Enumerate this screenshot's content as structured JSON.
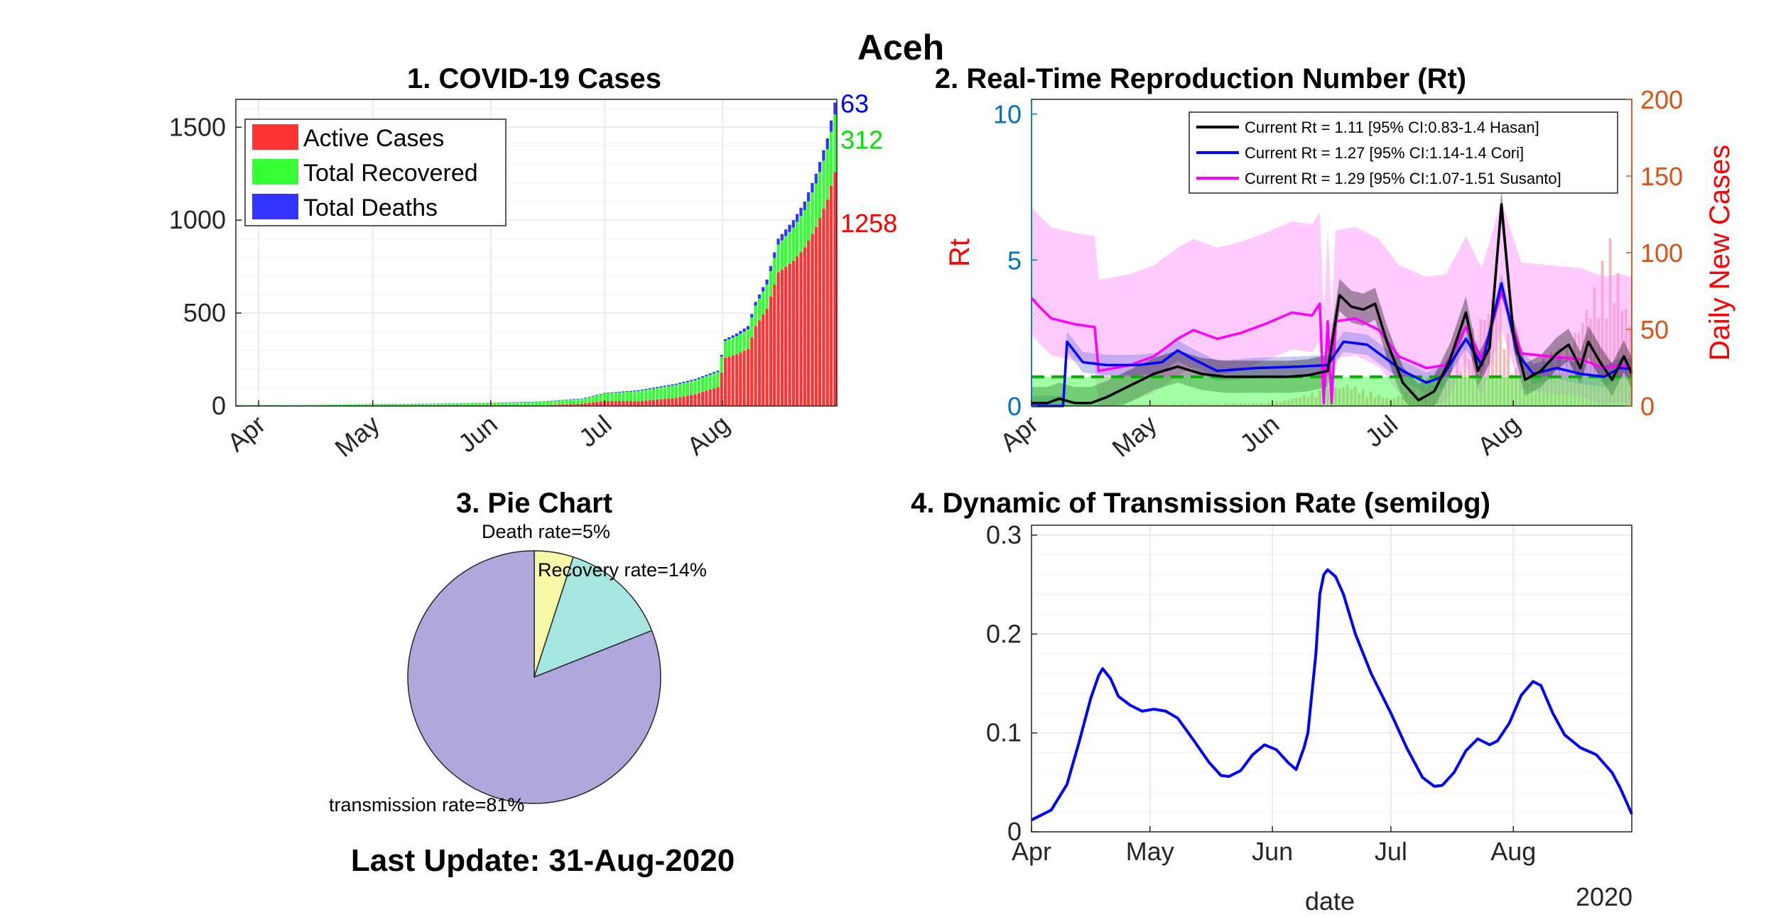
{
  "page_title": "Aceh",
  "last_update": "Last Update: 31-Aug-2020",
  "chart_data": [
    {
      "id": "cases",
      "type": "bar",
      "title": "1. COVID-19 Cases",
      "stacked": true,
      "x_range": [
        "2020-03-26",
        "2020-08-31"
      ],
      "month_ticks": [
        {
          "label": "Apr",
          "date": "2020-04-01"
        },
        {
          "label": "May",
          "date": "2020-05-01"
        },
        {
          "label": "Jun",
          "date": "2020-06-01"
        },
        {
          "label": "Jul",
          "date": "2020-07-01"
        },
        {
          "label": "Aug",
          "date": "2020-08-01"
        }
      ],
      "ylim": [
        0,
        1650
      ],
      "yticks": [
        0,
        500,
        1000,
        1500
      ],
      "ytick_labels": [
        "0",
        "500",
        "1000",
        "1500"
      ],
      "grid": true,
      "legend_position": "top-left",
      "series": [
        {
          "name": "Active Cases",
          "color": "#ff3333"
        },
        {
          "name": "Total Recovered",
          "color": "#33ff33"
        },
        {
          "name": "Total Deaths",
          "color": "#3333ff"
        }
      ],
      "total_keypoints": [
        [
          "2020-03-26",
          5
        ],
        [
          "2020-04-15",
          6
        ],
        [
          "2020-05-01",
          10
        ],
        [
          "2020-05-20",
          14
        ],
        [
          "2020-06-01",
          18
        ],
        [
          "2020-06-15",
          25
        ],
        [
          "2020-06-25",
          40
        ],
        [
          "2020-07-01",
          70
        ],
        [
          "2020-07-10",
          85
        ],
        [
          "2020-07-20",
          120
        ],
        [
          "2020-07-25",
          145
        ],
        [
          "2020-07-31",
          190
        ],
        [
          "2020-08-02",
          360
        ],
        [
          "2020-08-05",
          390
        ],
        [
          "2020-08-08",
          430
        ],
        [
          "2020-08-10",
          560
        ],
        [
          "2020-08-13",
          680
        ],
        [
          "2020-08-16",
          900
        ],
        [
          "2020-08-20",
          1000
        ],
        [
          "2020-08-23",
          1100
        ],
        [
          "2020-08-26",
          1250
        ],
        [
          "2020-08-29",
          1440
        ],
        [
          "2020-08-31",
          1633
        ]
      ],
      "recovered_keypoints": [
        [
          "2020-03-26",
          1
        ],
        [
          "2020-05-01",
          5
        ],
        [
          "2020-06-01",
          12
        ],
        [
          "2020-06-25",
          25
        ],
        [
          "2020-07-01",
          40
        ],
        [
          "2020-07-20",
          70
        ],
        [
          "2020-07-31",
          80
        ],
        [
          "2020-08-02",
          90
        ],
        [
          "2020-08-10",
          110
        ],
        [
          "2020-08-16",
          150
        ],
        [
          "2020-08-23",
          200
        ],
        [
          "2020-08-29",
          270
        ],
        [
          "2020-08-31",
          312
        ]
      ],
      "deaths_keypoints": [
        [
          "2020-03-26",
          0
        ],
        [
          "2020-06-01",
          1
        ],
        [
          "2020-07-01",
          3
        ],
        [
          "2020-07-31",
          8
        ],
        [
          "2020-08-10",
          20
        ],
        [
          "2020-08-20",
          40
        ],
        [
          "2020-08-31",
          63
        ]
      ],
      "end_labels": [
        {
          "text": "63",
          "color": "#0000ff"
        },
        {
          "text": "312",
          "color": "#00e600"
        },
        {
          "text": "1258",
          "color": "#ff0000"
        }
      ],
      "final_values": {
        "deaths": 63,
        "recovered": 312,
        "active": 1258
      }
    },
    {
      "id": "rt",
      "type": "line",
      "title": "2. Real-Time Reproduction Number (Rt)",
      "ylabel_left": "Rt",
      "ylabel_right": "Daily New Cases",
      "ylim_left": [
        0,
        10.5
      ],
      "yticks_left": [
        0,
        5,
        10
      ],
      "ytick_labels_left": [
        "0",
        "5",
        "10"
      ],
      "ylim_right": [
        0,
        200
      ],
      "yticks_right": [
        0,
        50,
        100,
        150,
        200
      ],
      "ytick_labels_right": [
        "0",
        "50",
        "100",
        "150",
        "200"
      ],
      "x_range": [
        "2020-04-01",
        "2020-08-31"
      ],
      "month_ticks": [
        {
          "label": "Apr",
          "date": "2020-04-01"
        },
        {
          "label": "May",
          "date": "2020-05-01"
        },
        {
          "label": "Jun",
          "date": "2020-06-01"
        },
        {
          "label": "Jul",
          "date": "2020-07-01"
        },
        {
          "label": "Aug",
          "date": "2020-08-01"
        }
      ],
      "legend_position": "top-right",
      "threshold": 1,
      "series": [
        {
          "name": "Current Rt = 1.11 [95% CI:0.83-1.4 Hasan]",
          "color": "#000000",
          "band_color": "#000000",
          "points": [
            [
              "2020-04-01",
              0.1
            ],
            [
              "2020-04-05",
              0.1
            ],
            [
              "2020-04-08",
              0.25
            ],
            [
              "2020-04-12",
              0.1
            ],
            [
              "2020-04-16",
              0.1
            ],
            [
              "2020-04-20",
              0.3
            ],
            [
              "2020-04-26",
              0.7
            ],
            [
              "2020-05-02",
              1.1
            ],
            [
              "2020-05-08",
              1.35
            ],
            [
              "2020-05-14",
              1.1
            ],
            [
              "2020-05-20",
              1.0
            ],
            [
              "2020-05-28",
              1.0
            ],
            [
              "2020-06-05",
              1.0
            ],
            [
              "2020-06-10",
              1.05
            ],
            [
              "2020-06-15",
              1.2
            ],
            [
              "2020-06-18",
              3.8
            ],
            [
              "2020-06-21",
              3.4
            ],
            [
              "2020-06-24",
              3.3
            ],
            [
              "2020-06-27",
              3.5
            ],
            [
              "2020-06-30",
              2.2
            ],
            [
              "2020-07-04",
              0.8
            ],
            [
              "2020-07-08",
              0.2
            ],
            [
              "2020-07-12",
              0.5
            ],
            [
              "2020-07-16",
              1.6
            ],
            [
              "2020-07-20",
              3.2
            ],
            [
              "2020-07-23",
              1.2
            ],
            [
              "2020-07-26",
              2.0
            ],
            [
              "2020-07-29",
              6.9
            ],
            [
              "2020-08-01",
              2.5
            ],
            [
              "2020-08-04",
              0.9
            ],
            [
              "2020-08-08",
              1.2
            ],
            [
              "2020-08-12",
              1.8
            ],
            [
              "2020-08-15",
              2.1
            ],
            [
              "2020-08-18",
              1.3
            ],
            [
              "2020-08-20",
              2.2
            ],
            [
              "2020-08-23",
              1.5
            ],
            [
              "2020-08-26",
              0.9
            ],
            [
              "2020-08-29",
              1.7
            ],
            [
              "2020-08-31",
              1.11
            ]
          ]
        },
        {
          "name": "Current Rt = 1.27 [95% CI:1.14-1.4 Cori]",
          "color": "#0000ff",
          "band_color": "#5b6bd9",
          "points": [
            [
              "2020-04-01",
              0.0
            ],
            [
              "2020-04-09",
              0.0
            ],
            [
              "2020-04-10",
              2.2
            ],
            [
              "2020-04-14",
              1.5
            ],
            [
              "2020-04-20",
              1.4
            ],
            [
              "2020-04-28",
              1.4
            ],
            [
              "2020-05-04",
              1.5
            ],
            [
              "2020-05-08",
              1.9
            ],
            [
              "2020-05-12",
              1.6
            ],
            [
              "2020-05-18",
              1.2
            ],
            [
              "2020-05-28",
              1.3
            ],
            [
              "2020-06-08",
              1.35
            ],
            [
              "2020-06-15",
              1.4
            ],
            [
              "2020-06-19",
              2.2
            ],
            [
              "2020-06-25",
              2.1
            ],
            [
              "2020-06-30",
              1.6
            ],
            [
              "2020-07-04",
              1.2
            ],
            [
              "2020-07-10",
              0.8
            ],
            [
              "2020-07-14",
              1.0
            ],
            [
              "2020-07-20",
              2.3
            ],
            [
              "2020-07-24",
              1.4
            ],
            [
              "2020-07-29",
              4.2
            ],
            [
              "2020-08-02",
              1.8
            ],
            [
              "2020-08-06",
              1.1
            ],
            [
              "2020-08-12",
              1.3
            ],
            [
              "2020-08-18",
              1.1
            ],
            [
              "2020-08-24",
              1.0
            ],
            [
              "2020-08-28",
              1.3
            ],
            [
              "2020-08-31",
              1.27
            ]
          ]
        },
        {
          "name": "Current Rt = 1.29 [95% CI:1.07-1.51 Susanto]",
          "color": "#ff00ff",
          "band_color": "#ff8cff",
          "points": [
            [
              "2020-04-01",
              3.7
            ],
            [
              "2020-04-03",
              3.4
            ],
            [
              "2020-04-06",
              3.0
            ],
            [
              "2020-04-12",
              2.8
            ],
            [
              "2020-04-17",
              2.7
            ],
            [
              "2020-04-18",
              1.2
            ],
            [
              "2020-04-26",
              1.4
            ],
            [
              "2020-05-02",
              1.7
            ],
            [
              "2020-05-08",
              2.3
            ],
            [
              "2020-05-12",
              2.6
            ],
            [
              "2020-05-18",
              2.3
            ],
            [
              "2020-05-24",
              2.5
            ],
            [
              "2020-05-30",
              2.8
            ],
            [
              "2020-06-06",
              3.2
            ],
            [
              "2020-06-11",
              3.1
            ],
            [
              "2020-06-13",
              3.5
            ],
            [
              "2020-06-14",
              0.1
            ],
            [
              "2020-06-15",
              2.9
            ],
            [
              "2020-06-16",
              0.1
            ],
            [
              "2020-06-17",
              2.9
            ],
            [
              "2020-06-22",
              3.0
            ],
            [
              "2020-06-28",
              2.6
            ],
            [
              "2020-07-03",
              1.7
            ],
            [
              "2020-07-10",
              1.3
            ],
            [
              "2020-07-15",
              1.4
            ],
            [
              "2020-07-20",
              2.7
            ],
            [
              "2020-07-24",
              1.6
            ],
            [
              "2020-07-29",
              3.9
            ],
            [
              "2020-08-03",
              1.8
            ],
            [
              "2020-08-10",
              1.7
            ],
            [
              "2020-08-18",
              1.6
            ],
            [
              "2020-08-24",
              1.3
            ],
            [
              "2020-08-28",
              1.4
            ],
            [
              "2020-08-31",
              1.29
            ]
          ]
        }
      ],
      "daily_new_cases_color": "#e8a0a0",
      "daily_new_cases_keypoints": [
        [
          "2020-04-01",
          0
        ],
        [
          "2020-05-01",
          1
        ],
        [
          "2020-06-01",
          2
        ],
        [
          "2020-06-20",
          15
        ],
        [
          "2020-07-01",
          5
        ],
        [
          "2020-07-15",
          20
        ],
        [
          "2020-07-28",
          80
        ],
        [
          "2020-08-02",
          25
        ],
        [
          "2020-08-15",
          40
        ],
        [
          "2020-08-22",
          80
        ],
        [
          "2020-08-26",
          110
        ],
        [
          "2020-08-31",
          60
        ]
      ]
    },
    {
      "id": "pie",
      "type": "pie",
      "title": "3. Pie Chart",
      "slices": [
        {
          "label": "Death rate=5%",
          "value": 5,
          "color": "#f7f7a8"
        },
        {
          "label": "Recovery rate=14%",
          "value": 14,
          "color": "#a6e6e0"
        },
        {
          "label": "transmission rate=81%",
          "value": 81,
          "color": "#b0a8dc"
        }
      ]
    },
    {
      "id": "transmission",
      "type": "line",
      "title": "4. Dynamic of Transmission Rate (semilog)",
      "xlabel": "date",
      "x_secondary_label": "2020",
      "x_range": [
        "2020-04-01",
        "2020-08-31"
      ],
      "month_ticks": [
        {
          "label": "Apr",
          "date": "2020-04-01"
        },
        {
          "label": "May",
          "date": "2020-05-01"
        },
        {
          "label": "Jun",
          "date": "2020-06-01"
        },
        {
          "label": "Jul",
          "date": "2020-07-01"
        },
        {
          "label": "Aug",
          "date": "2020-08-01"
        }
      ],
      "ylim": [
        0,
        0.31
      ],
      "yticks": [
        0,
        0.1,
        0.2,
        0.3
      ],
      "ytick_labels": [
        "0",
        "0.1",
        "0.2",
        "0.3"
      ],
      "grid": true,
      "color": "#0000ff",
      "points": [
        [
          "2020-04-01",
          0.012
        ],
        [
          "2020-04-06",
          0.022
        ],
        [
          "2020-04-10",
          0.048
        ],
        [
          "2020-04-13",
          0.09
        ],
        [
          "2020-04-16",
          0.135
        ],
        [
          "2020-04-18",
          0.158
        ],
        [
          "2020-04-19",
          0.165
        ],
        [
          "2020-04-21",
          0.155
        ],
        [
          "2020-04-23",
          0.137
        ],
        [
          "2020-04-26",
          0.128
        ],
        [
          "2020-04-29",
          0.122
        ],
        [
          "2020-05-02",
          0.124
        ],
        [
          "2020-05-05",
          0.122
        ],
        [
          "2020-05-08",
          0.115
        ],
        [
          "2020-05-12",
          0.093
        ],
        [
          "2020-05-16",
          0.07
        ],
        [
          "2020-05-19",
          0.057
        ],
        [
          "2020-05-21",
          0.056
        ],
        [
          "2020-05-24",
          0.062
        ],
        [
          "2020-05-27",
          0.078
        ],
        [
          "2020-05-30",
          0.088
        ],
        [
          "2020-06-02",
          0.083
        ],
        [
          "2020-06-05",
          0.07
        ],
        [
          "2020-06-07",
          0.063
        ],
        [
          "2020-06-09",
          0.085
        ],
        [
          "2020-06-10",
          0.1
        ],
        [
          "2020-06-12",
          0.18
        ],
        [
          "2020-06-13",
          0.24
        ],
        [
          "2020-06-14",
          0.26
        ],
        [
          "2020-06-15",
          0.265
        ],
        [
          "2020-06-17",
          0.258
        ],
        [
          "2020-06-19",
          0.24
        ],
        [
          "2020-06-22",
          0.2
        ],
        [
          "2020-06-26",
          0.16
        ],
        [
          "2020-07-01",
          0.12
        ],
        [
          "2020-07-05",
          0.085
        ],
        [
          "2020-07-09",
          0.055
        ],
        [
          "2020-07-12",
          0.046
        ],
        [
          "2020-07-14",
          0.047
        ],
        [
          "2020-07-17",
          0.06
        ],
        [
          "2020-07-20",
          0.082
        ],
        [
          "2020-07-23",
          0.094
        ],
        [
          "2020-07-26",
          0.088
        ],
        [
          "2020-07-28",
          0.092
        ],
        [
          "2020-07-31",
          0.11
        ],
        [
          "2020-08-03",
          0.138
        ],
        [
          "2020-08-06",
          0.152
        ],
        [
          "2020-08-08",
          0.148
        ],
        [
          "2020-08-11",
          0.12
        ],
        [
          "2020-08-14",
          0.098
        ],
        [
          "2020-08-18",
          0.085
        ],
        [
          "2020-08-22",
          0.078
        ],
        [
          "2020-08-26",
          0.06
        ],
        [
          "2020-08-28",
          0.045
        ],
        [
          "2020-08-31",
          0.018
        ]
      ]
    }
  ]
}
